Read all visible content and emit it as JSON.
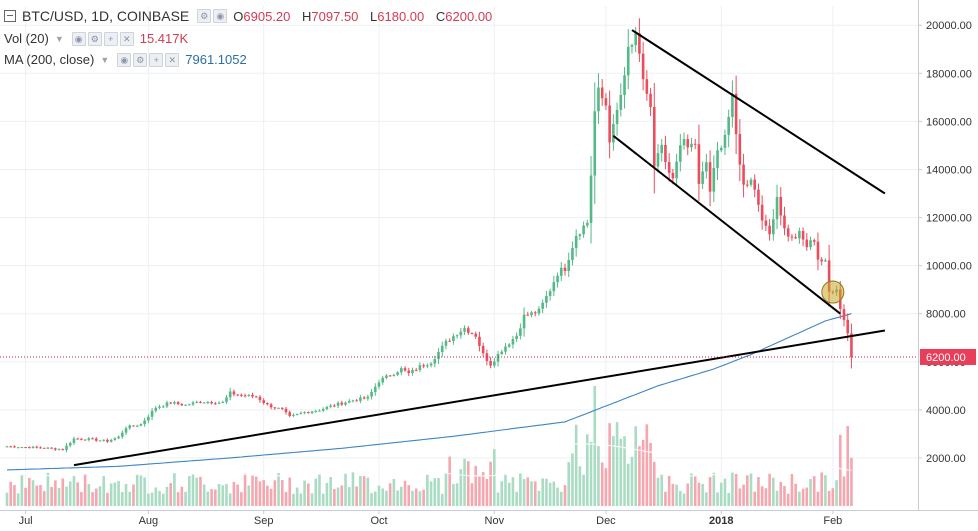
{
  "header": {
    "symbol": "BTC/USD, 1D, COINBASE",
    "o_label": "O",
    "o_value": "6905.20",
    "h_label": "H",
    "h_value": "7097.50",
    "l_label": "L",
    "l_value": "6180.00",
    "c_label": "C",
    "c_value": "6200.00",
    "vol_label": "Vol (20)",
    "vol_value": "15.417K",
    "ma_label": "MA (200, close)",
    "ma_value": "7961.1052"
  },
  "colors": {
    "up": "#53b987",
    "down": "#eb4d5c",
    "vol_up": "#a9dcc3",
    "vol_down": "#f5a6ae",
    "ma": "#3d85c6",
    "price_line": "#c2185b",
    "grid": "#eef0f3",
    "axis_text": "#333333",
    "last_price_bg": "#e83e5a"
  },
  "chart_data": {
    "type": "candlestick",
    "x_ticks": [
      "Jul",
      "Aug",
      "Sep",
      "Oct",
      "Nov",
      "Dec",
      "2018",
      "Feb"
    ],
    "y_ticks": [
      "2000.00",
      "4000.00",
      "6000.00",
      "8000.00",
      "10000.00",
      "12000.00",
      "14000.00",
      "16000.00",
      "18000.00",
      "20000.00"
    ],
    "last_price": "6200.00",
    "ylim": [
      0,
      20800
    ],
    "close_keyframes": [
      [
        0,
        2480
      ],
      [
        10,
        2420
      ],
      [
        15,
        2350
      ],
      [
        18,
        2800
      ],
      [
        22,
        2780
      ],
      [
        27,
        2700
      ],
      [
        30,
        2870
      ],
      [
        32,
        3270
      ],
      [
        36,
        3400
      ],
      [
        40,
        4100
      ],
      [
        44,
        4300
      ],
      [
        48,
        4200
      ],
      [
        52,
        4350
      ],
      [
        58,
        4300
      ],
      [
        60,
        4700
      ],
      [
        63,
        4600
      ],
      [
        67,
        4550
      ],
      [
        70,
        4200
      ],
      [
        74,
        4000
      ],
      [
        76,
        3700
      ],
      [
        78,
        3800
      ],
      [
        80,
        3900
      ],
      [
        84,
        4000
      ],
      [
        88,
        4200
      ],
      [
        93,
        4400
      ],
      [
        97,
        4500
      ],
      [
        100,
        5200
      ],
      [
        106,
        5700
      ],
      [
        108,
        5500
      ],
      [
        111,
        5800
      ],
      [
        114,
        6000
      ],
      [
        118,
        6800
      ],
      [
        121,
        7200
      ],
      [
        123,
        7400
      ],
      [
        126,
        7100
      ],
      [
        128,
        6300
      ],
      [
        130,
        5900
      ],
      [
        133,
        6500
      ],
      [
        137,
        7100
      ],
      [
        139,
        7900
      ],
      [
        143,
        8100
      ],
      [
        146,
        9000
      ],
      [
        148,
        9700
      ],
      [
        150,
        9900
      ],
      [
        153,
        11300
      ],
      [
        156,
        11800
      ],
      [
        157,
        13800
      ],
      [
        158,
        16400
      ],
      [
        159,
        17200
      ],
      [
        161,
        16700
      ],
      [
        162,
        15300
      ],
      [
        163,
        15700
      ],
      [
        165,
        17100
      ],
      [
        166,
        17700
      ],
      [
        167,
        19000
      ],
      [
        169,
        19400
      ],
      [
        171,
        17800
      ],
      [
        173,
        16500
      ],
      [
        174,
        14000
      ],
      [
        176,
        15000
      ],
      [
        177,
        14100
      ],
      [
        179,
        13500
      ],
      [
        181,
        15200
      ],
      [
        183,
        14900
      ],
      [
        185,
        15100
      ],
      [
        186,
        13300
      ],
      [
        188,
        14300
      ],
      [
        189,
        13100
      ],
      [
        191,
        14700
      ],
      [
        193,
        15500
      ],
      [
        195,
        16900
      ],
      [
        196,
        15400
      ],
      [
        198,
        13300
      ],
      [
        200,
        13700
      ],
      [
        202,
        12600
      ],
      [
        204,
        11500
      ],
      [
        205,
        11300
      ],
      [
        207,
        12900
      ],
      [
        209,
        11500
      ],
      [
        211,
        11100
      ],
      [
        213,
        11300
      ],
      [
        215,
        10800
      ],
      [
        217,
        11100
      ],
      [
        218,
        10300
      ],
      [
        220,
        10100
      ],
      [
        221,
        8900
      ],
      [
        223,
        9100
      ],
      [
        224,
        8200
      ],
      [
        225,
        7800
      ],
      [
        226,
        7200
      ],
      [
        227,
        6200
      ]
    ],
    "ma_keyframes": [
      [
        0,
        1500
      ],
      [
        30,
        1650
      ],
      [
        60,
        2000
      ],
      [
        90,
        2400
      ],
      [
        120,
        2900
      ],
      [
        150,
        3500
      ],
      [
        160,
        4100
      ],
      [
        175,
        5000
      ],
      [
        190,
        5700
      ],
      [
        200,
        6300
      ],
      [
        210,
        7000
      ],
      [
        220,
        7700
      ],
      [
        227,
        8000
      ]
    ],
    "trendlines": [
      {
        "from": [
          18,
          1700
        ],
        "to": [
          236,
          7300
        ]
      },
      {
        "from": [
          168,
          19800
        ],
        "to": [
          236,
          13000
        ]
      },
      {
        "from": [
          163,
          15400
        ],
        "to": [
          224,
          8000
        ]
      }
    ],
    "highlight": {
      "x": 222,
      "y": 8900
    }
  }
}
